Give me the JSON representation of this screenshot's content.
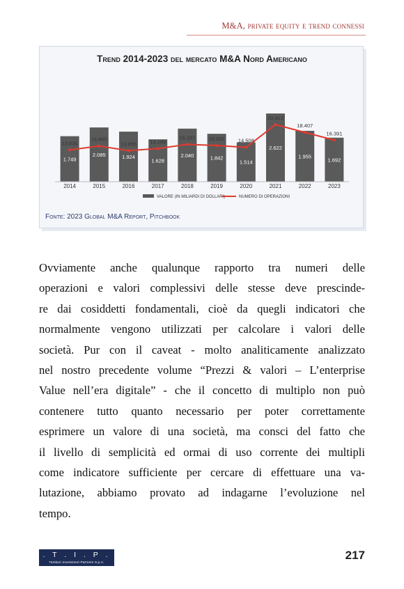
{
  "header": {
    "running_head": "M&A, private equity e trend connessi"
  },
  "figure": {
    "title": "Trend 2014-2023 del mercato M&A Nord Americano",
    "source": "Fonte: 2023 Global M&A Report, Pitchbook"
  },
  "chart_data": {
    "type": "bar",
    "title": "Trend 2014-2023 del mercato M&A Nord Americano",
    "categories": [
      "2014",
      "2015",
      "2016",
      "2017",
      "2018",
      "2019",
      "2020",
      "2021",
      "2022",
      "2023"
    ],
    "series": [
      {
        "name": "Valore (in miliardi di dollari)",
        "kind": "bar",
        "values": [
          1749,
          2085,
          1924,
          1628,
          2040,
          1842,
          1514,
          2622,
          1955,
          1692
        ],
        "labels": [
          "1.749",
          "2.085",
          "1.924",
          "1.628",
          "2.040",
          "1.842",
          "1.514",
          "2.622",
          "1.955",
          "1.692"
        ],
        "color": "#5a5a5a"
      },
      {
        "name": "Numero di operazioni",
        "kind": "line",
        "values": [
          13835,
          14865,
          13655,
          14199,
          15287,
          15002,
          14508,
          20413,
          18407,
          16391
        ],
        "labels": [
          "13.835",
          "14.865",
          "13.655",
          "14.199",
          "15.287",
          "15.002",
          "14.508",
          "20.413",
          "18.407",
          "16.391"
        ],
        "color": "#e03a2f"
      }
    ],
    "legend": "bottom",
    "grid": false
  },
  "body": {
    "lines": [
      "Ovviamente anche qualunque rapporto tra numeri delle",
      "operazioni e valori complessivi delle stesse deve prescinde-",
      "re dai cosiddetti fondamentali, cioè da quegli indicatori che",
      "normalmente vengono utilizzati per calcolare i valori delle",
      "società. Pur con il caveat - molto analiticamente analizzato",
      "nel nostro precedente volume “Prezzi & valori – L’enterprise",
      "Value nell’era digitale” - che il concetto di multiplo non può",
      "contenere tutto quanto necessario per poter correttamente",
      "esprimere un valore di una società, ma consci del fatto che",
      "il livello di semplicità ed ormai di uso corrente dei multipli",
      "come indicatore sufficiente per cercare di effettuare una va-",
      "lutazione, abbiamo provato ad indagarne l’evoluzione nel",
      "tempo."
    ]
  },
  "footer": {
    "logo_mark": ". T . I . P .",
    "logo_sub": "Tamburi Investment Partners S.p.A.",
    "page_number": "217"
  }
}
